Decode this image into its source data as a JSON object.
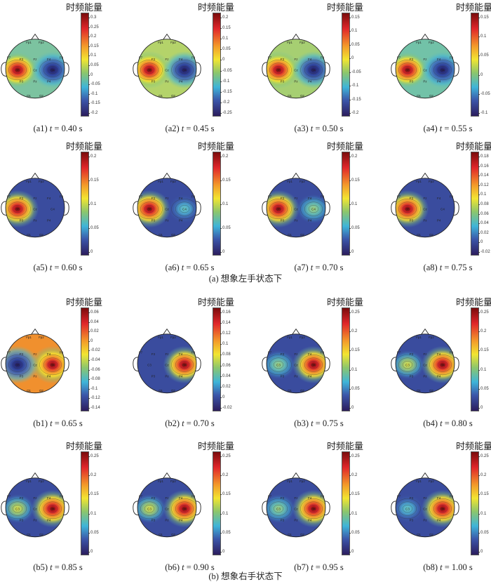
{
  "colorbar_title": "时频能量",
  "electrodes": [
    "Fp1",
    "Fp2",
    "F7",
    "F3",
    "Fz",
    "F4",
    "F8",
    "C3",
    "Cz",
    "C4",
    "P3",
    "Pz",
    "P4",
    "O1",
    "O2"
  ],
  "sections": [
    {
      "label": "(a) 想象左手状态下"
    },
    {
      "label": "(b) 想象右手状态下"
    }
  ],
  "panels": [
    {
      "id": "(a1)",
      "t_label": "t",
      "t_value": "= 0.40 s",
      "ticks": [
        "0.3",
        "0.25",
        "0.2",
        "0.15",
        "0.1",
        "0.05",
        "0",
        "-0.05",
        "-0.1",
        "-0.15",
        "-0.2"
      ],
      "bg": "#7cc3a0",
      "left": "hot",
      "right": "cold"
    },
    {
      "id": "(a2)",
      "t_label": "t",
      "t_value": "= 0.45 s",
      "ticks": [
        "0.2",
        "0.15",
        "0.1",
        "0.05",
        "0",
        "-0.05",
        "-0.1",
        "-0.15",
        "-0.2",
        "-0.25"
      ],
      "bg": "#b4d36a",
      "left": "hot",
      "right": "cold"
    },
    {
      "id": "(a3)",
      "t_label": "t",
      "t_value": "= 0.50 s",
      "ticks": [
        "0.15",
        "0.1",
        "0.05",
        "0",
        "-0.05",
        "-0.1",
        "-0.15",
        "-0.2"
      ],
      "bg": "#a6cf72",
      "left": "hot",
      "right": "cold"
    },
    {
      "id": "(a4)",
      "t_label": "t",
      "t_value": "= 0.55 s",
      "ticks": [
        "0.15",
        "0.1",
        "0.05",
        "0",
        "-0.05",
        "-0.1"
      ],
      "bg": "#72c2a8",
      "left": "hot",
      "right": "cold"
    },
    {
      "id": "(a5)",
      "t_label": "t",
      "t_value": "= 0.60 s",
      "ticks": [
        "0.2",
        "0.15",
        "0.1",
        "0.05",
        "0"
      ],
      "bg": "#3a4c9e",
      "left": "hot",
      "right": "none"
    },
    {
      "id": "(a6)",
      "t_label": "t",
      "t_value": "= 0.65 s",
      "ticks": [
        "0.2",
        "0.15",
        "0.1",
        "0.05",
        "0"
      ],
      "bg": "#3a4c9e",
      "left": "hot",
      "right": "cyan"
    },
    {
      "id": "(a7)",
      "t_label": "t",
      "t_value": "= 0.70 s",
      "ticks": [
        "0.2",
        "0.15",
        "0.1",
        "0.05",
        "0"
      ],
      "bg": "#3a4c9e",
      "left": "hot",
      "right": "green"
    },
    {
      "id": "(a8)",
      "t_label": "t",
      "t_value": "= 0.75 s",
      "ticks": [
        "0.18",
        "0.16",
        "0.14",
        "0.12",
        "0.1",
        "0.08",
        "0.06",
        "0.04",
        "0.02",
        "0",
        "-0.02"
      ],
      "bg": "#3a4c9e",
      "left": "hot",
      "right": "none"
    },
    {
      "id": "(b1)",
      "t_label": "t",
      "t_value": "= 0.65 s",
      "ticks": [
        "0.06",
        "0.04",
        "0.02",
        "0",
        "-0.02",
        "-0.04",
        "-0.06",
        "-0.08",
        "-0.1",
        "-0.12",
        "-0.14"
      ],
      "bg": "#f0902e",
      "left": "cold",
      "right": "hot"
    },
    {
      "id": "(b2)",
      "t_label": "t",
      "t_value": "= 0.70 s",
      "ticks": [
        "0.16",
        "0.14",
        "0.12",
        "0.1",
        "0.08",
        "0.06",
        "0.04",
        "0.02",
        "0",
        "-0.02"
      ],
      "bg": "#3a4c9e",
      "left": "none",
      "right": "hot"
    },
    {
      "id": "(b3)",
      "t_label": "t",
      "t_value": "= 0.75 s",
      "ticks": [
        "0.25",
        "0.2",
        "0.15",
        "0.1",
        "0.05",
        "0"
      ],
      "bg": "#3a4c9e",
      "left": "green",
      "right": "hot"
    },
    {
      "id": "(b4)",
      "t_label": "t",
      "t_value": "= 0.80 s",
      "ticks": [
        "0.25",
        "0.2",
        "0.15",
        "0.1",
        "0.05",
        "0"
      ],
      "bg": "#3a4c9e",
      "left": "yellow",
      "right": "hot"
    },
    {
      "id": "(b5)",
      "t_label": "t",
      "t_value": "= 0.85 s",
      "ticks": [
        "0.25",
        "0.2",
        "0.15",
        "0.1",
        "0.05",
        "0"
      ],
      "bg": "#3a4c9e",
      "left": "yellow",
      "right": "hot"
    },
    {
      "id": "(b6)",
      "t_label": "t",
      "t_value": "= 0.90 s",
      "ticks": [
        "0.25",
        "0.2",
        "0.15",
        "0.1",
        "0.05",
        "0"
      ],
      "bg": "#3a4c9e",
      "left": "yellow",
      "right": "hot"
    },
    {
      "id": "(b7)",
      "t_label": "t",
      "t_value": "= 0.95 s",
      "ticks": [
        "0.25",
        "0.2",
        "0.15",
        "0.1",
        "0.05",
        "0"
      ],
      "bg": "#3a4c9e",
      "left": "green",
      "right": "hot"
    },
    {
      "id": "(b8)",
      "t_label": "t",
      "t_value": "= 1.00 s",
      "ticks": [
        "0.25",
        "0.2",
        "0.15",
        "0.1",
        "0.05",
        "0"
      ],
      "bg": "#3a4c9e",
      "left": "cyan",
      "right": "hot"
    }
  ]
}
